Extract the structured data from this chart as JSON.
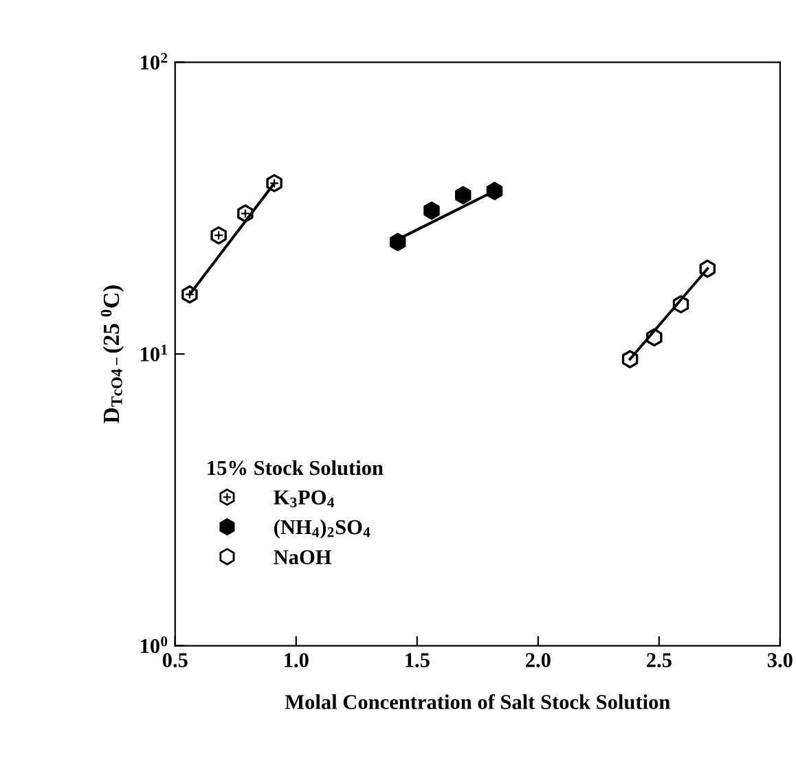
{
  "chart_data": {
    "type": "scatter",
    "xlabel": "Molal Concentration of Salt Stock Solution",
    "ylabel": "D$_{TcO4−}$(25 $^{0}$C)",
    "legend_title": "15% Stock Solution",
    "log": "y",
    "xlim": [
      0.5,
      3.0
    ],
    "xticks": [
      0.5,
      {
        "value": 1,
        "label": "1.0"
      },
      1.5,
      {
        "value": 2,
        "label": "2.0"
      },
      2.5,
      {
        "value": 3,
        "label": "3.0"
      }
    ],
    "ylim": [
      1,
      100
    ],
    "yticks": [
      {
        "value": 1,
        "label": "10$^{0}$"
      },
      {
        "value": 10,
        "label": "10$^{1}$"
      },
      {
        "value": 100,
        "label": "10$^{2}$"
      }
    ],
    "grid": false,
    "legend": "bottom left",
    "series": [
      {
        "name": "K$_{3}$PO$_{4}$",
        "color": "#000000",
        "x": [
          0.56,
          0.68,
          0.79,
          0.91
        ],
        "values": [
          16.0,
          25.5,
          30.3,
          38.5
        ]
      },
      {
        "name": "(NH$_{4}$)$_{2}$SO$_{4}$",
        "color": "#000000",
        "x": [
          1.42,
          1.56,
          1.69,
          1.82
        ],
        "values": [
          24.2,
          31.0,
          35.0,
          36.2
        ]
      },
      {
        "name": "NaOH",
        "color": "#000000",
        "x": [
          2.38,
          2.48,
          2.59,
          2.7
        ],
        "values": [
          9.6,
          11.4,
          14.8,
          19.6
        ]
      },
      {
        "type": "line",
        "color": "#000000",
        "marker": "none",
        "line_style": "solid",
        "x": [
          0.56,
          0.91
        ],
        "values": [
          16.0,
          38.5
        ]
      },
      {
        "type": "line",
        "color": "#000000",
        "marker": "none",
        "line_style": "solid",
        "x": [
          1.42,
          1.82
        ],
        "values": [
          24.7,
          36.2
        ]
      },
      {
        "type": "line",
        "color": "#000000",
        "marker": "none",
        "line_style": "solid",
        "x": [
          2.38,
          2.7
        ],
        "values": [
          9.6,
          19.6
        ]
      }
    ]
  }
}
